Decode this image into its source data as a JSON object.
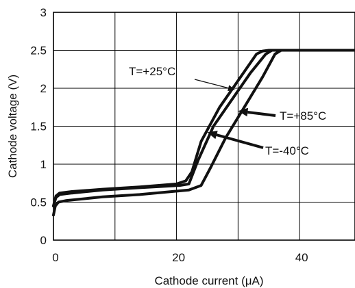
{
  "chart_data": {
    "type": "line",
    "xlabel": "Cathode current (μA)",
    "ylabel": "Cathode voltage (V)",
    "xlim": [
      0,
      49
    ],
    "ylim": [
      0,
      3
    ],
    "x_ticks": [
      "0",
      "20",
      "40"
    ],
    "x_tick_values": [
      0,
      20,
      40
    ],
    "y_ticks": [
      "0",
      "0.5",
      "1",
      "1.5",
      "2",
      "2.5",
      "3"
    ],
    "y_tick_values": [
      0,
      0.5,
      1,
      1.5,
      2,
      2.5,
      3
    ],
    "grid": true,
    "series": [
      {
        "name": "T=+25°C",
        "x": [
          0,
          0.4,
          1,
          3,
          8,
          14,
          20,
          21.5,
          22.5,
          24,
          27,
          30,
          33,
          34,
          35,
          49
        ],
        "y": [
          0.45,
          0.58,
          0.62,
          0.64,
          0.67,
          0.7,
          0.74,
          0.78,
          0.9,
          1.3,
          1.75,
          2.1,
          2.45,
          2.49,
          2.5,
          2.5
        ]
      },
      {
        "name": "T=+85°C",
        "x": [
          0,
          0.4,
          1,
          3,
          8,
          14,
          20.5,
          22,
          23.5,
          26,
          29,
          32,
          34.5,
          35.5,
          36,
          49
        ],
        "y": [
          0.45,
          0.56,
          0.6,
          0.62,
          0.66,
          0.69,
          0.72,
          0.74,
          1.05,
          1.5,
          1.85,
          2.2,
          2.45,
          2.5,
          2.5,
          2.5
        ]
      },
      {
        "name": "T=-40°C",
        "x": [
          0,
          0.3,
          0.8,
          2,
          8,
          14,
          22,
          24,
          25.5,
          28,
          31,
          34,
          36,
          37,
          49
        ],
        "y": [
          0.33,
          0.45,
          0.5,
          0.52,
          0.57,
          0.6,
          0.66,
          0.72,
          0.95,
          1.35,
          1.75,
          2.15,
          2.45,
          2.5,
          2.5
        ]
      }
    ],
    "annotations": [
      {
        "text": "T=+25°C",
        "arrow_to": [
          29.5,
          1.98
        ]
      },
      {
        "text": "T=+85°C",
        "arrow_to": [
          30,
          1.7
        ]
      },
      {
        "text": "T=-40°C",
        "arrow_to": [
          25,
          1.42
        ]
      }
    ]
  }
}
